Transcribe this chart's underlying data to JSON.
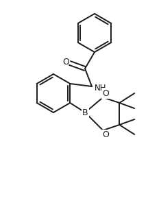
{
  "bg_color": "#ffffff",
  "line_color": "#1a1a1a",
  "line_width": 1.4,
  "font_size_atom": 9,
  "figsize": [
    2.16,
    2.96
  ],
  "dpi": 100,
  "xlim": [
    0.0,
    2.16
  ],
  "ylim": [
    0.0,
    2.96
  ]
}
